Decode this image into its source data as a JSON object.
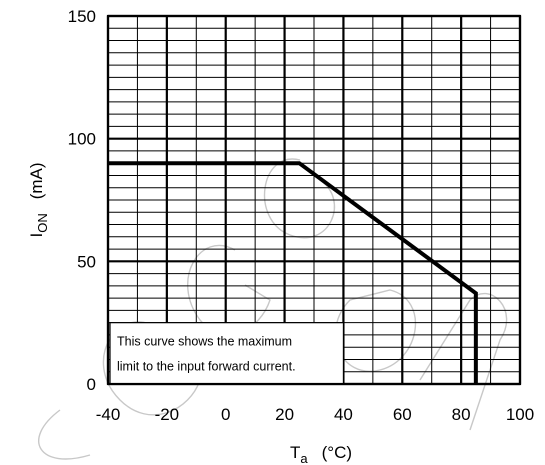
{
  "chart_data": {
    "type": "line",
    "title": "",
    "xlabel": {
      "main": "T",
      "sub": "a",
      "unit": "(°C)"
    },
    "ylabel": {
      "main": "I",
      "sub": "ON",
      "unit": "(mA)"
    },
    "xlim": [
      -40,
      100
    ],
    "ylim": [
      0,
      150
    ],
    "xticks": [
      "-40",
      "-20",
      "0",
      "20",
      "40",
      "60",
      "80",
      "100"
    ],
    "yticks": [
      "0",
      "50",
      "100",
      "150"
    ],
    "grid": true,
    "legend": "none",
    "series": [
      {
        "x": [
          -40,
          25,
          85,
          85
        ],
        "y": [
          90,
          90,
          37,
          0
        ]
      }
    ],
    "annotation": {
      "lines": [
        "This curve shows the maximum",
        "limit to the input forward current."
      ]
    },
    "watermark": "elecdemo"
  }
}
